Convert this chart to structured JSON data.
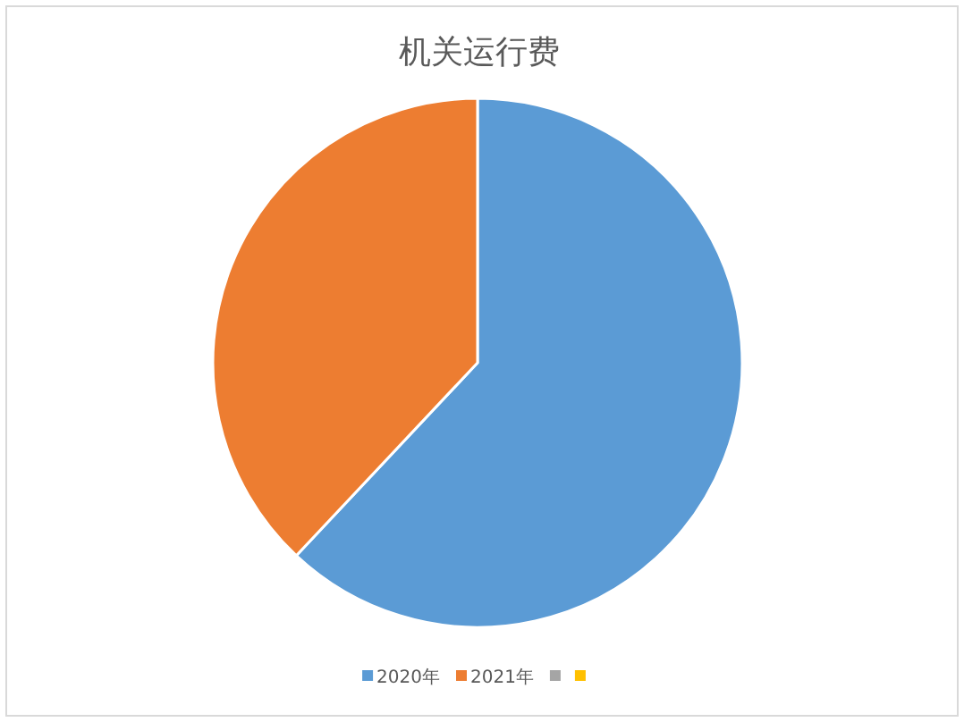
{
  "chart_data": {
    "type": "pie",
    "title": "机关运行费",
    "categories": [
      "2020年",
      "2021年",
      null,
      null
    ],
    "values": [
      62,
      38,
      0,
      0
    ],
    "colors": [
      "#5b9bd5",
      "#ed7d31",
      "#a5a5a5",
      "#ffc000"
    ],
    "legend": "bottom"
  }
}
